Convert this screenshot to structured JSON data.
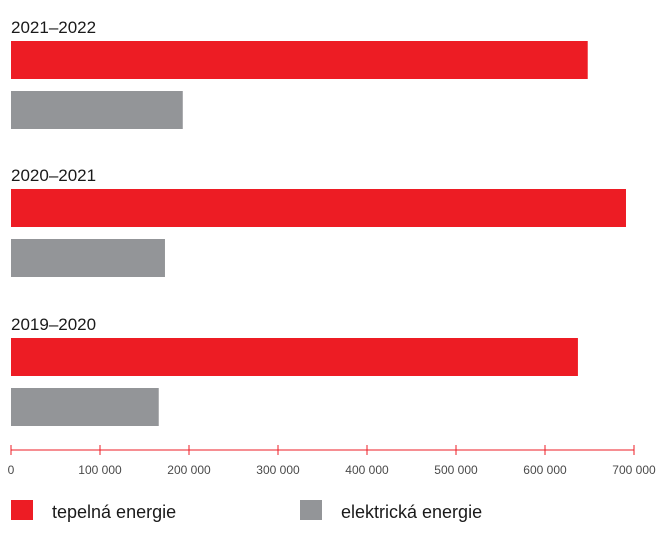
{
  "chart_data": {
    "type": "bar",
    "orientation": "horizontal",
    "title": "",
    "xlabel": "",
    "ylabel": "",
    "categories": [
      "2021–2022",
      "2020–2021",
      "2019–2020"
    ],
    "series": [
      {
        "name": "tepelná energie",
        "color": "#ed1c24",
        "values": [
          648000,
          691000,
          637000
        ]
      },
      {
        "name": "elektrická energie",
        "color": "#939598",
        "values": [
          193000,
          173000,
          166000
        ]
      }
    ],
    "xlim": [
      0,
      700000
    ],
    "x_ticks": [
      0,
      100000,
      200000,
      300000,
      400000,
      500000,
      600000,
      700000
    ],
    "x_tick_labels": [
      "0",
      "100 000",
      "200 000",
      "300 000",
      "400 000",
      "500 000",
      "600 000",
      "700 000"
    ],
    "axis_color": "#ed1c24",
    "grid": false,
    "legend_position": "bottom"
  }
}
